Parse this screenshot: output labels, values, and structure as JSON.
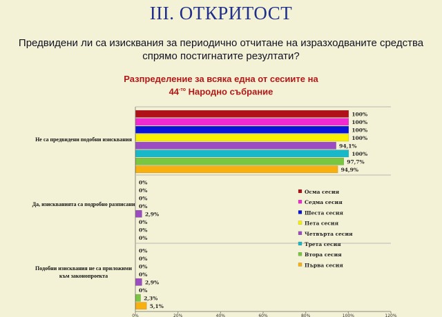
{
  "title": "III. ОТКРИТОСТ",
  "question_line1": "Предвидени ли са изисквания за периодично отчитане на изразходваните средства",
  "question_line2": "спрямо постигнатите резултати?",
  "subtitle_line1": "Разпределение  за всяка една от сесиите на",
  "subtitle_line2_num": "44",
  "subtitle_line2_sup": "-то",
  "subtitle_line2_rest": " Народно събрание",
  "chart_data": {
    "type": "bar",
    "orientation": "horizontal",
    "xlim": [
      0,
      120
    ],
    "ticks": [
      "0%",
      "20%",
      "40%",
      "60%",
      "80%",
      "100%",
      "120%"
    ],
    "grid": "horizontal separators between categories",
    "legend_position": "right",
    "categories": [
      "Не са предвидени подобни изисквания",
      "Да, изискванията са подробно разписани",
      "Подобни изисквания не са приложими към законопроекта"
    ],
    "series": [
      {
        "name": "Осма сесия",
        "color": "#b01018",
        "values": [
          100,
          0,
          0
        ],
        "labels": [
          "100%",
          "0%",
          "0%"
        ]
      },
      {
        "name": "Седма сесия",
        "color": "#f02ad0",
        "values": [
          100,
          0,
          0
        ],
        "labels": [
          "100%",
          "0%",
          "0%"
        ]
      },
      {
        "name": "Шеста сесия",
        "color": "#0a14d8",
        "values": [
          100,
          0,
          0
        ],
        "labels": [
          "100%",
          "0%",
          "0%"
        ]
      },
      {
        "name": "Пета сесия",
        "color": "#f8f000",
        "values": [
          100,
          0,
          0
        ],
        "labels": [
          "100%",
          "0%",
          "0%"
        ]
      },
      {
        "name": "Четвърта сесия",
        "color": "#9a4cc0",
        "values": [
          94.1,
          2.9,
          2.9
        ],
        "labels": [
          "94,1%",
          "2,9%",
          "2,9%"
        ]
      },
      {
        "name": "Трета сесия",
        "color": "#19b8c8",
        "values": [
          100,
          0,
          0
        ],
        "labels": [
          "100%",
          "0%",
          "0%"
        ]
      },
      {
        "name": "Втора сесия",
        "color": "#7ac640",
        "values": [
          97.7,
          0,
          2.3
        ],
        "labels": [
          "97,7%",
          "0%",
          "2,3%"
        ]
      },
      {
        "name": "Първа  сесия",
        "color": "#f8b010",
        "values": [
          94.9,
          0,
          5.1
        ],
        "labels": [
          "94,9%",
          "0%",
          "5,1%"
        ]
      }
    ]
  }
}
